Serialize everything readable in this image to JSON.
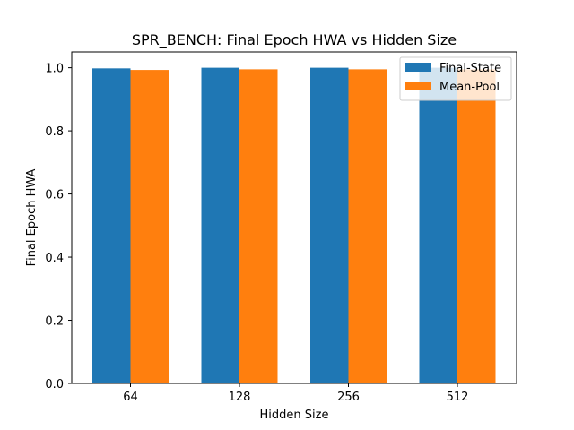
{
  "chart_data": {
    "type": "bar",
    "title": "SPR_BENCH: Final Epoch HWA vs Hidden Size",
    "xlabel": "Hidden Size",
    "ylabel": "Final Epoch HWA",
    "categories": [
      "64",
      "128",
      "256",
      "512"
    ],
    "ylim": [
      0,
      1.05
    ],
    "yticks": [
      "0.0",
      "0.2",
      "0.4",
      "0.6",
      "0.8",
      "1.0"
    ],
    "grid": false,
    "legend_position": "top-right",
    "series": [
      {
        "name": "Final-State",
        "color": "#1f77b4",
        "values": [
          0.998,
          1.0,
          1.0,
          1.0
        ]
      },
      {
        "name": "Mean-Pool",
        "color": "#ff7f0e",
        "values": [
          0.993,
          0.995,
          0.995,
          0.995
        ]
      }
    ]
  }
}
